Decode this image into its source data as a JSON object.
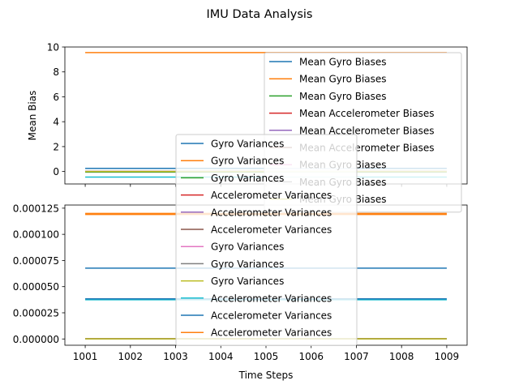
{
  "figure_title": "IMU Data Analysis",
  "chart_data": [
    {
      "type": "line",
      "title": "",
      "xlabel": "",
      "ylabel": "Mean Bias",
      "x": [
        1001,
        1002,
        1003,
        1004,
        1005,
        1006,
        1007,
        1008,
        1009
      ],
      "xlim": [
        1000.55,
        1009.45
      ],
      "ylim": [
        -1.0,
        10.0
      ],
      "yticks": [
        0,
        2,
        4,
        6,
        8,
        10
      ],
      "ytick_labels": [
        "0",
        "2",
        "4",
        "6",
        "8",
        "10"
      ],
      "xtick_labels_shown": false,
      "grid": false,
      "series": [
        {
          "name": "Mean Gyro Biases",
          "color": "#1f77b4",
          "values": [
            0.25,
            0.25,
            0.25,
            0.25,
            0.25,
            0.25,
            0.25,
            0.25,
            0.25
          ]
        },
        {
          "name": "Mean Gyro Biases",
          "color": "#ff7f0e",
          "values": [
            9.55,
            9.55,
            9.55,
            9.55,
            9.55,
            9.55,
            9.55,
            9.55,
            9.55
          ]
        },
        {
          "name": "Mean Gyro Biases",
          "color": "#2ca02c",
          "values": [
            -0.05,
            -0.05,
            -0.05,
            -0.05,
            -0.05,
            -0.05,
            -0.05,
            -0.05,
            -0.05
          ]
        },
        {
          "name": "Mean Accelerometer Biases",
          "color": "#d62728",
          "values": [
            0.0,
            0.0,
            0.0,
            0.0,
            0.0,
            0.0,
            0.0,
            0.0,
            0.0
          ]
        },
        {
          "name": "Mean Accelerometer Biases",
          "color": "#9467bd",
          "values": [
            0.0,
            0.0,
            0.0,
            0.0,
            0.0,
            0.0,
            0.0,
            0.0,
            0.0
          ]
        },
        {
          "name": "Mean Accelerometer Biases",
          "color": "#8c564b",
          "values": [
            0.0,
            0.0,
            0.0,
            0.0,
            0.0,
            0.0,
            0.0,
            0.0,
            0.0
          ]
        },
        {
          "name": "Mean Gyro Biases",
          "color": "#e377c2",
          "values": [
            0.0,
            0.0,
            0.0,
            0.0,
            0.0,
            0.0,
            0.0,
            0.0,
            0.0
          ]
        },
        {
          "name": "Mean Gyro Biases",
          "color": "#7f7f7f",
          "values": [
            0.0,
            0.0,
            0.0,
            0.0,
            0.0,
            0.0,
            0.0,
            0.0,
            0.0
          ]
        },
        {
          "name": "Mean Gyro Biases",
          "color": "#bcbd22",
          "values": [
            0.0,
            0.0,
            0.0,
            0.0,
            0.0,
            0.0,
            0.0,
            0.0,
            0.0
          ]
        },
        {
          "name": "",
          "color": "#17becf",
          "values": [
            -0.45,
            -0.45,
            -0.45,
            -0.45,
            -0.45,
            -0.45,
            -0.45,
            -0.45,
            -0.45
          ]
        }
      ],
      "legend_location": "upper right"
    },
    {
      "type": "line",
      "title": "",
      "xlabel": "Time Steps",
      "ylabel": "",
      "x": [
        1001,
        1002,
        1003,
        1004,
        1005,
        1006,
        1007,
        1008,
        1009
      ],
      "xlim": [
        1000.55,
        1009.45
      ],
      "ylim": [
        -6e-06,
        0.000128
      ],
      "xticks": [
        1001,
        1002,
        1003,
        1004,
        1005,
        1006,
        1007,
        1008,
        1009
      ],
      "xtick_labels": [
        "1001",
        "1002",
        "1003",
        "1004",
        "1005",
        "1006",
        "1007",
        "1008",
        "1009"
      ],
      "yticks": [
        0.0,
        2.5e-05,
        5e-05,
        7.5e-05,
        0.0001,
        0.000125
      ],
      "ytick_labels": [
        "0.000000",
        "0.000025",
        "0.000050",
        "0.000075",
        "0.000100",
        "0.000125"
      ],
      "grid": false,
      "series": [
        {
          "name": "Gyro Variances",
          "color": "#1f77b4",
          "values": [
            6.77e-05,
            6.77e-05,
            6.77e-05,
            6.77e-05,
            6.77e-05,
            6.77e-05,
            6.77e-05,
            6.77e-05,
            6.77e-05
          ]
        },
        {
          "name": "Gyro Variances",
          "color": "#ff7f0e",
          "values": [
            0.00012,
            0.00012,
            0.00012,
            0.00012,
            0.00012,
            0.00012,
            0.00012,
            0.00012,
            0.00012
          ]
        },
        {
          "name": "Gyro Variances",
          "color": "#2ca02c",
          "values": [
            2e-07,
            2e-07,
            2e-07,
            2e-07,
            2e-07,
            2e-07,
            2e-07,
            2e-07,
            2e-07
          ]
        },
        {
          "name": "Accelerometer Variances",
          "color": "#d62728",
          "values": [
            1e-07,
            1e-07,
            1e-07,
            1e-07,
            1e-07,
            1e-07,
            1e-07,
            1e-07,
            1e-07
          ]
        },
        {
          "name": "Accelerometer Variances",
          "color": "#9467bd",
          "values": [
            1e-07,
            1e-07,
            1e-07,
            1e-07,
            1e-07,
            1e-07,
            1e-07,
            1e-07,
            1e-07
          ]
        },
        {
          "name": "Accelerometer Variances",
          "color": "#8c564b",
          "values": [
            1e-07,
            1e-07,
            1e-07,
            1e-07,
            1e-07,
            1e-07,
            1e-07,
            1e-07,
            1e-07
          ]
        },
        {
          "name": "Gyro Variances",
          "color": "#e377c2",
          "values": [
            1e-07,
            1e-07,
            1e-07,
            1e-07,
            1e-07,
            1e-07,
            1e-07,
            1e-07,
            1e-07
          ]
        },
        {
          "name": "Gyro Variances",
          "color": "#7f7f7f",
          "values": [
            1e-07,
            1e-07,
            1e-07,
            1e-07,
            1e-07,
            1e-07,
            1e-07,
            1e-07,
            1e-07
          ]
        },
        {
          "name": "Gyro Variances",
          "color": "#bcbd22",
          "values": [
            1e-07,
            1e-07,
            1e-07,
            1e-07,
            1e-07,
            1e-07,
            1e-07,
            1e-07,
            1e-07
          ]
        },
        {
          "name": "Accelerometer Variances",
          "color": "#17becf",
          "values": [
            3.75e-05,
            3.75e-05,
            3.75e-05,
            3.75e-05,
            3.75e-05,
            3.75e-05,
            3.75e-05,
            3.75e-05,
            3.75e-05
          ]
        },
        {
          "name": "Accelerometer Variances",
          "color": "#1f77b4",
          "values": [
            3.83e-05,
            3.83e-05,
            3.83e-05,
            3.83e-05,
            3.83e-05,
            3.83e-05,
            3.83e-05,
            3.83e-05,
            3.83e-05
          ]
        },
        {
          "name": "Accelerometer Variances",
          "color": "#ff7f0e",
          "values": [
            0.000119,
            0.000119,
            0.000119,
            0.000119,
            0.000119,
            0.000119,
            0.000119,
            0.000119,
            0.000119
          ]
        }
      ],
      "legend_location": "lower center"
    }
  ]
}
